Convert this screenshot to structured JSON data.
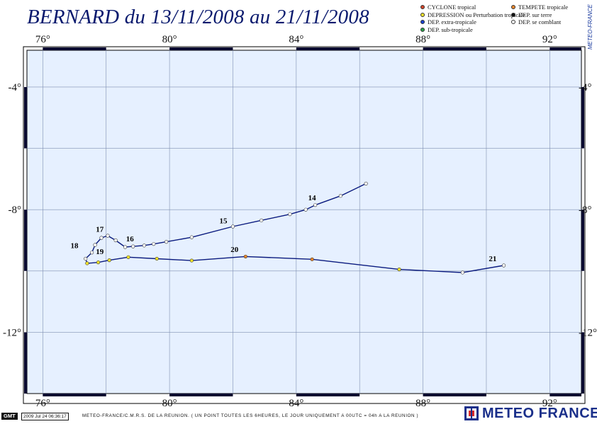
{
  "title": "BERNARD du 13/11/2008 au 21/11/2008",
  "watermark": "METEO-FRANCE",
  "legend": [
    {
      "label": "CYCLONE tropical",
      "color": "#d2452a"
    },
    {
      "label": "TEMPETE tropicale",
      "color": "#e8872e"
    },
    {
      "label": "DEPRESSION ou Perturbation tropicale",
      "color": "#f2e22a"
    },
    {
      "label": "DEP. sur terre",
      "color": "#111111"
    },
    {
      "label": "DEP. extra-tropicale",
      "color": "#1a3fd0"
    },
    {
      "label": "DEP. se comblant",
      "color": "#ffffff"
    },
    {
      "label": "DEP. sub-tropicale",
      "color": "#2aa04a"
    }
  ],
  "map": {
    "lon_range": [
      75.5,
      93.0
    ],
    "lat_range": [
      -14.0,
      -2.8
    ],
    "lon_ticks": [
      76,
      80,
      84,
      88,
      92
    ],
    "lat_ticks": [
      -4,
      -8,
      -12
    ],
    "lon_tick_labels": [
      "76°",
      "80°",
      "84°",
      "88°",
      "92°"
    ],
    "lat_tick_labels": [
      "-4°",
      "-8°",
      "-12°"
    ],
    "grid_lon": [
      76,
      78,
      80,
      82,
      84,
      86,
      88,
      90,
      92
    ],
    "grid_lat": [
      -4,
      -6,
      -8,
      -10,
      -12,
      -14
    ],
    "ocean_color": "#e6f0ff",
    "track_color": "#0a1a7e",
    "track": [
      {
        "lon": 86.2,
        "lat": -7.15,
        "status": "DEP. se comblant"
      },
      {
        "lon": 85.4,
        "lat": -7.55,
        "status": "DEP. se comblant"
      },
      {
        "lon": 84.6,
        "lat": -7.85,
        "status": "DEP. se comblant"
      },
      {
        "lon": 84.3,
        "lat": -8.0,
        "status": "DEP. se comblant"
      },
      {
        "lon": 83.8,
        "lat": -8.15,
        "status": "DEP. se comblant"
      },
      {
        "lon": 82.9,
        "lat": -8.35,
        "status": "DEP. se comblant"
      },
      {
        "lon": 82.0,
        "lat": -8.55,
        "status": "DEP. se comblant"
      },
      {
        "lon": 80.7,
        "lat": -8.9,
        "status": "DEP. se comblant"
      },
      {
        "lon": 79.9,
        "lat": -9.05,
        "status": "DEP. se comblant"
      },
      {
        "lon": 79.5,
        "lat": -9.12,
        "status": "DEP. se comblant"
      },
      {
        "lon": 79.2,
        "lat": -9.17,
        "status": "DEP. se comblant"
      },
      {
        "lon": 78.85,
        "lat": -9.2,
        "status": "DEP. se comblant"
      },
      {
        "lon": 78.6,
        "lat": -9.22,
        "status": "DEP. se comblant"
      },
      {
        "lon": 78.3,
        "lat": -9.0,
        "status": "DEP. se comblant"
      },
      {
        "lon": 78.05,
        "lat": -8.85,
        "status": "DEP. se comblant"
      },
      {
        "lon": 77.85,
        "lat": -8.92,
        "status": "DEP. se comblant"
      },
      {
        "lon": 77.65,
        "lat": -9.15,
        "status": "DEP. se comblant"
      },
      {
        "lon": 77.55,
        "lat": -9.4,
        "status": "DEP. se comblant"
      },
      {
        "lon": 77.35,
        "lat": -9.6,
        "status": "DEP. se comblant"
      },
      {
        "lon": 77.4,
        "lat": -9.75,
        "status": "DEPRESSION ou Perturbation tropicale"
      },
      {
        "lon": 77.75,
        "lat": -9.72,
        "status": "DEPRESSION ou Perturbation tropicale"
      },
      {
        "lon": 78.1,
        "lat": -9.65,
        "status": "DEPRESSION ou Perturbation tropicale"
      },
      {
        "lon": 78.7,
        "lat": -9.55,
        "status": "DEPRESSION ou Perturbation tropicale"
      },
      {
        "lon": 79.6,
        "lat": -9.6,
        "status": "DEPRESSION ou Perturbation tropicale"
      },
      {
        "lon": 80.7,
        "lat": -9.66,
        "status": "DEPRESSION ou Perturbation tropicale"
      },
      {
        "lon": 82.4,
        "lat": -9.53,
        "status": "TEMPETE tropicale"
      },
      {
        "lon": 84.5,
        "lat": -9.62,
        "status": "TEMPETE tropicale"
      },
      {
        "lon": 87.25,
        "lat": -9.95,
        "status": "DEPRESSION ou Perturbation tropicale"
      },
      {
        "lon": 89.25,
        "lat": -10.05,
        "status": "DEP. se comblant"
      },
      {
        "lon": 90.55,
        "lat": -9.82,
        "status": "DEP. se comblant"
      }
    ],
    "day_labels": [
      {
        "text": "14",
        "lon": 84.5,
        "lat": -7.7
      },
      {
        "text": "15",
        "lon": 81.7,
        "lat": -8.45
      },
      {
        "text": "16",
        "lon": 78.75,
        "lat": -9.03
      },
      {
        "text": "17",
        "lon": 77.8,
        "lat": -8.72
      },
      {
        "text": "18",
        "lon": 77.0,
        "lat": -9.25
      },
      {
        "text": "19",
        "lon": 77.8,
        "lat": -9.45
      },
      {
        "text": "20",
        "lon": 82.05,
        "lat": -9.38
      },
      {
        "text": "21",
        "lon": 90.2,
        "lat": -9.68
      }
    ]
  },
  "footer": {
    "gmt": "GMT",
    "timestamp": "2009 Jul 24 06:36:17",
    "note": "METEO-FRANCE/C.M.R.S. DE LA REUNION. ( UN POINT TOUTES LES 6HEURES, LE JOUR UNIQUEMENT A 00UTC = 04h A LA REUNION )"
  },
  "logo_text": "METEO FRANCE"
}
